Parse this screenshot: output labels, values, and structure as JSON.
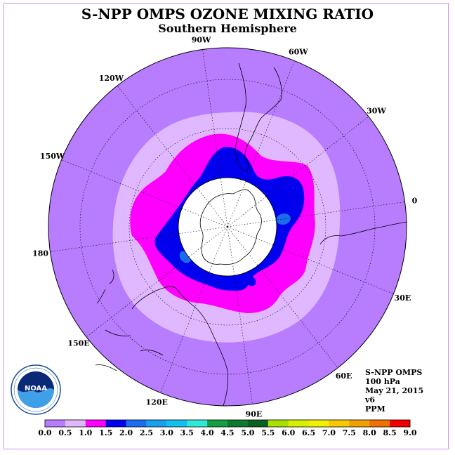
{
  "title": "S-NPP OMPS OZONE MIXING RATIO",
  "subtitle": "Southern Hemisphere",
  "longitude_labels": [
    "90W",
    "60W",
    "30W",
    "0",
    "30E",
    "60E",
    "90E",
    "120E",
    "150E",
    "180",
    "150W",
    "120W"
  ],
  "info": {
    "instrument": "S-NPP OMPS",
    "level": "100 hPa",
    "date": "May 21, 2015",
    "version": "v6",
    "units": "PPM"
  },
  "logo": {
    "text": "NOAA",
    "ring_text": "NATIONAL OCEANIC AND ATMOSPHERIC ADMINISTRATION · U.S. DEPARTMENT OF COMMERCE"
  },
  "colorbar": {
    "labels": [
      "0.0",
      "0.5",
      "1.0",
      "1.5",
      "2.0",
      "2.5",
      "3.0",
      "3.5",
      "4.0",
      "4.5",
      "5.0",
      "5.5",
      "6.0",
      "6.5",
      "7.0",
      "7.5",
      "8.0",
      "8.5",
      "9.0"
    ],
    "colors": [
      "#b87cff",
      "#e0b8ff",
      "#ff00ff",
      "#0000ee",
      "#1a6cf0",
      "#17a0f0",
      "#14c0f0",
      "#2ee8d8",
      "#14a040",
      "#0e7a30",
      "#0a6020",
      "#a8e000",
      "#d8f000",
      "#f0f000",
      "#f8c800",
      "#f0a000",
      "#f07000",
      "#f00000",
      "#8a5a40"
    ]
  },
  "contours": {
    "background_color": "#b87cff",
    "band_0_5_color": "#e0b8ff",
    "band_1_0_color": "#ff00ff",
    "band_1_5_color": "#0000ee",
    "band_2_0_color": "#1a6cf0",
    "polar_night_color": "#ffffff"
  }
}
